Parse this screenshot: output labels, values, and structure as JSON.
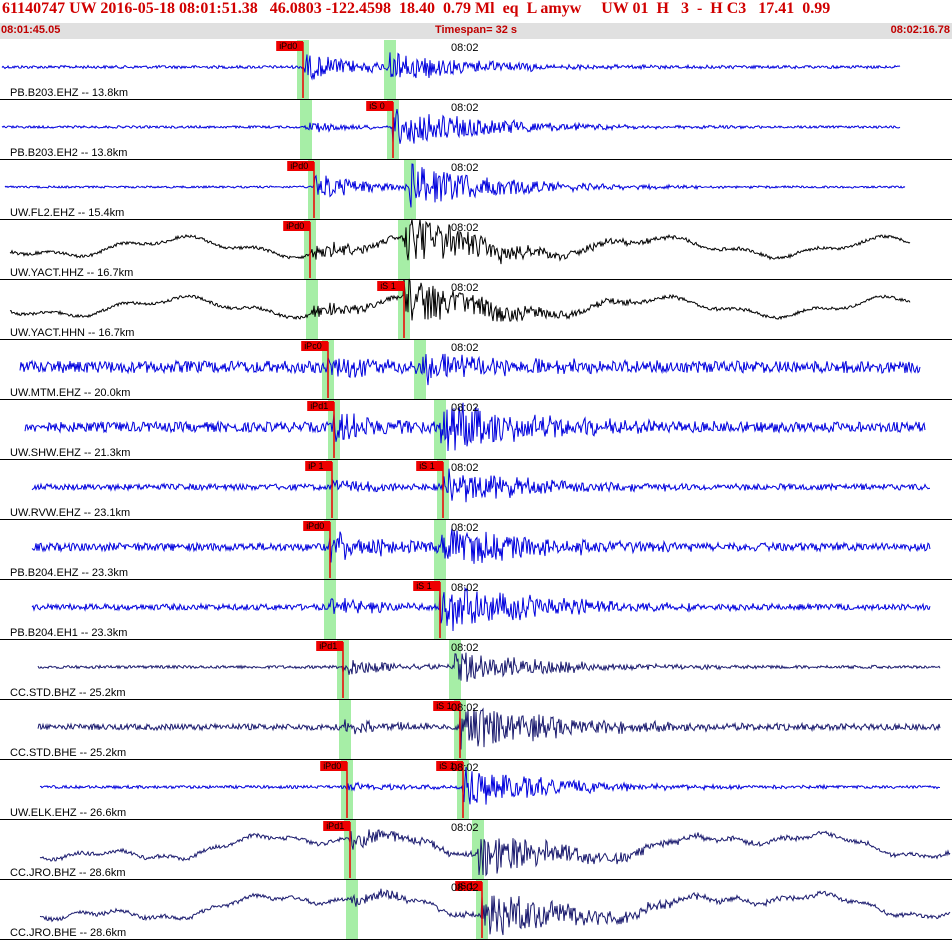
{
  "header": {
    "title": "61140747 UW 2016-05-18 08:01:51.38   46.0803 -122.4598  18.40  0.79 Ml  eq  L amyw     UW 01  H   3  -  H C3   17.41  0.99",
    "start_time": "08:01:45.05",
    "timespan": "Timespan=  32 s",
    "end_time": "08:02:16.78"
  },
  "chart_data": {
    "type": "line",
    "time_marker": "08:02",
    "colors": {
      "blue": "#0000dd",
      "black": "#000000",
      "navy": "#1a1a6e",
      "p_band": "#a6eea6",
      "pick": "#ee0000"
    },
    "traces": [
      {
        "label": "PB.B203.EHZ -- 13.8km",
        "color": "blue",
        "p_label": "iPd0",
        "s_label": "",
        "p_band": true,
        "s_band": true
      },
      {
        "label": "PB.B203.EH2 -- 13.8km",
        "color": "blue",
        "p_label": "",
        "s_label": "iS 0",
        "p_band": true,
        "s_band": true
      },
      {
        "label": "UW.FL2.EHZ -- 15.4km",
        "color": "blue",
        "p_label": "iPd0",
        "s_label": "",
        "p_band": false,
        "s_band": false
      },
      {
        "label": "UW.YACT.HHZ -- 16.7km",
        "color": "black",
        "p_label": "iPd0",
        "s_label": "",
        "p_band": false,
        "s_band": true
      },
      {
        "label": "UW.YACT.HHN -- 16.7km",
        "color": "black",
        "p_label": "",
        "s_label": "iS 1",
        "p_band": true,
        "s_band": true
      },
      {
        "label": "UW.MTM.EHZ -- 20.0km",
        "color": "blue",
        "p_label": "iPc0",
        "s_label": "",
        "p_band": true,
        "s_band": true
      },
      {
        "label": "UW.SHW.EHZ -- 21.3km",
        "color": "blue",
        "p_label": "iPd1",
        "s_label": "",
        "p_band": true,
        "s_band": true
      },
      {
        "label": "UW.RVW.EHZ -- 23.1km",
        "color": "blue",
        "p_label": "iP 1",
        "s_label": "iS 1",
        "p_band": true,
        "s_band": true
      },
      {
        "label": "PB.B204.EHZ -- 23.3km",
        "color": "blue",
        "p_label": "iPd0",
        "s_label": "",
        "p_band": true,
        "s_band": true
      },
      {
        "label": "PB.B204.EH1 -- 23.3km",
        "color": "blue",
        "p_label": "",
        "s_label": "iS 1",
        "p_band": true,
        "s_band": true
      },
      {
        "label": "CC.STD.BHZ -- 25.2km",
        "color": "navy",
        "p_label": "iPd1",
        "s_label": "",
        "p_band": true,
        "s_band": true
      },
      {
        "label": "CC.STD.BHE -- 25.2km",
        "color": "navy",
        "p_label": "",
        "s_label": "iS 1",
        "p_band": true,
        "s_band": true
      },
      {
        "label": "UW.ELK.EHZ -- 26.6km",
        "color": "blue",
        "p_label": "iPd0",
        "s_label": "iS 1",
        "p_band": true,
        "s_band": true
      },
      {
        "label": "CC.JRO.BHZ -- 28.6km",
        "color": "navy",
        "p_label": "iPd1",
        "s_label": "",
        "p_band": true,
        "s_band": true
      },
      {
        "label": "CC.JRO.BHE -- 28.6km",
        "color": "navy",
        "p_label": "",
        "s_label": "iS 1",
        "p_band": true,
        "s_band": true
      }
    ]
  }
}
